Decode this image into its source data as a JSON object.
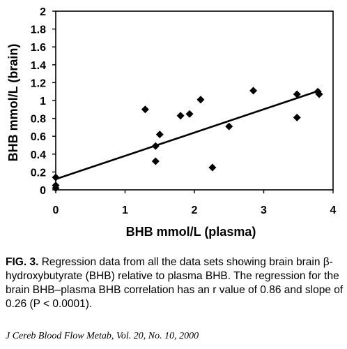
{
  "chart_data": {
    "type": "scatter",
    "xlabel": "BHB mmol/L (plasma)",
    "ylabel": "BHB mmol/L (brain)",
    "xlim": [
      0,
      4
    ],
    "ylim": [
      0,
      2
    ],
    "x_ticks": [
      "0",
      "1",
      "2",
      "3",
      "4"
    ],
    "y_ticks": [
      "0",
      "0.2",
      "0.4",
      "0.6",
      "0.8",
      "1",
      "1.2",
      "1.4",
      "1.6",
      "1.8",
      "2"
    ],
    "grid": false,
    "marker": "diamond",
    "points": [
      {
        "x": 0.0,
        "y": 0.02
      },
      {
        "x": 0.0,
        "y": 0.05
      },
      {
        "x": 0.0,
        "y": 0.14
      },
      {
        "x": 1.29,
        "y": 0.9
      },
      {
        "x": 1.44,
        "y": 0.49
      },
      {
        "x": 1.44,
        "y": 0.32
      },
      {
        "x": 1.5,
        "y": 0.62
      },
      {
        "x": 1.8,
        "y": 0.83
      },
      {
        "x": 1.93,
        "y": 0.85
      },
      {
        "x": 2.09,
        "y": 1.01
      },
      {
        "x": 2.26,
        "y": 0.25
      },
      {
        "x": 2.5,
        "y": 0.71
      },
      {
        "x": 2.85,
        "y": 1.11
      },
      {
        "x": 3.48,
        "y": 1.07
      },
      {
        "x": 3.48,
        "y": 0.81
      },
      {
        "x": 3.78,
        "y": 1.1
      },
      {
        "x": 3.8,
        "y": 1.07
      }
    ],
    "regression": {
      "x": [
        0,
        3.8
      ],
      "y": [
        0.12,
        1.11
      ]
    }
  },
  "caption": {
    "label": "FIG. 3.",
    "text": "Regression data from all the data sets showing brain brain β-hydroxybutyrate (BHB) relative to plasma BHB. The regression for the brain BHB–plasma BHB correlation has an r value of 0.86 and slope of 0.26 (P < 0.0001)."
  },
  "journal": "J Cereb Blood Flow Metab, Vol. 20, No. 10, 2000"
}
